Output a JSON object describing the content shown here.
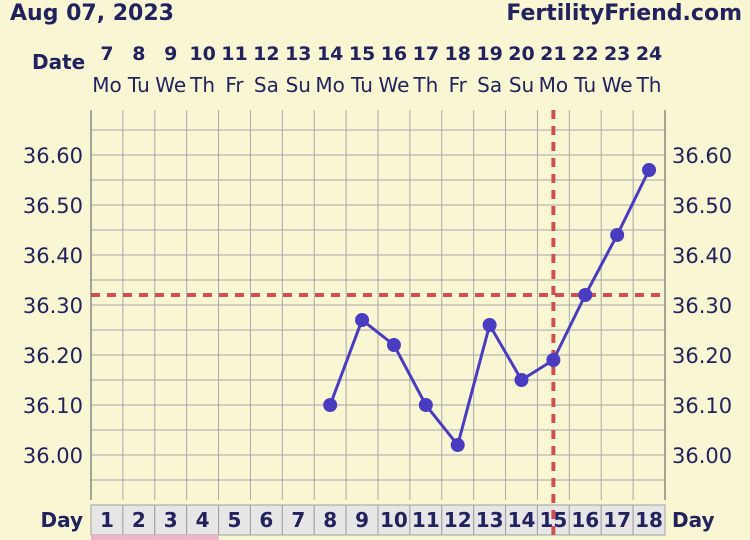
{
  "header": {
    "date": "Aug 07, 2023",
    "brand": "FertilityFriend.com"
  },
  "date_row_label": "Date",
  "day_row_label": "Day",
  "chart_data": {
    "type": "line",
    "dates": [
      "7",
      "8",
      "9",
      "10",
      "11",
      "12",
      "13",
      "14",
      "15",
      "16",
      "17",
      "18",
      "19",
      "20",
      "21",
      "22",
      "23",
      "24"
    ],
    "weekdays": [
      "Mo",
      "Tu",
      "We",
      "Th",
      "Fr",
      "Sa",
      "Su",
      "Mo",
      "Tu",
      "We",
      "Th",
      "Fr",
      "Sa",
      "Su",
      "Mo",
      "Tu",
      "We",
      "Th"
    ],
    "days": [
      1,
      2,
      3,
      4,
      5,
      6,
      7,
      8,
      9,
      10,
      11,
      12,
      13,
      14,
      15,
      16,
      17,
      18
    ],
    "menstruation_days": [
      1,
      2,
      3,
      4
    ],
    "y_ticks": [
      "36.00",
      "36.10",
      "36.20",
      "36.30",
      "36.40",
      "36.50",
      "36.60"
    ],
    "ylim": [
      35.91,
      36.69
    ],
    "series": [
      {
        "x": [
          8,
          9,
          10,
          11,
          12,
          13,
          14,
          15,
          16,
          17,
          18
        ],
        "values": [
          36.1,
          36.27,
          36.22,
          36.1,
          36.02,
          36.26,
          36.15,
          36.19,
          36.32,
          36.44,
          36.57
        ]
      }
    ],
    "coverline": 36.32,
    "ovulation_day": 15,
    "grid": true,
    "colors": {
      "background": "#f8f6d3",
      "grid": "#a8a8a8",
      "line": "#4a3cc0",
      "point": "#4a3cc0",
      "reference": "#d05050",
      "text": "#22225e",
      "day_cell": "#e6e6e6",
      "period": "#f0b4c8"
    }
  }
}
